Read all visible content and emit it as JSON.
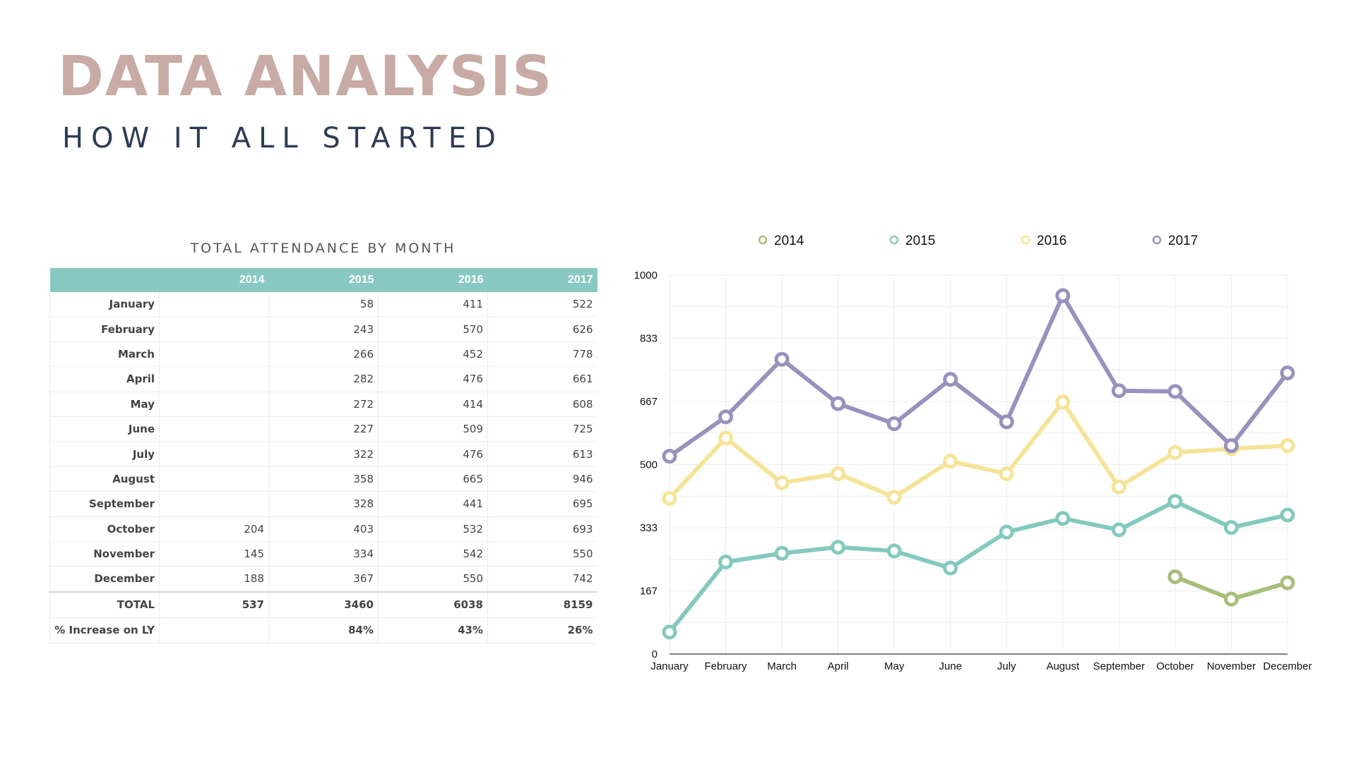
{
  "header": {
    "title": "DATA ANALYSIS",
    "subtitle": "HOW IT ALL STARTED"
  },
  "table": {
    "caption": "TOTAL ATTENDANCE BY MONTH",
    "columns": [
      "",
      "2014",
      "2015",
      "2016",
      "2017"
    ],
    "rows": [
      {
        "label": "January",
        "values": [
          "",
          "58",
          "411",
          "522"
        ]
      },
      {
        "label": "February",
        "values": [
          "",
          "243",
          "570",
          "626"
        ]
      },
      {
        "label": "March",
        "values": [
          "",
          "266",
          "452",
          "778"
        ]
      },
      {
        "label": "April",
        "values": [
          "",
          "282",
          "476",
          "661"
        ]
      },
      {
        "label": "May",
        "values": [
          "",
          "272",
          "414",
          "608"
        ]
      },
      {
        "label": "June",
        "values": [
          "",
          "227",
          "509",
          "725"
        ]
      },
      {
        "label": "July",
        "values": [
          "",
          "322",
          "476",
          "613"
        ]
      },
      {
        "label": "August",
        "values": [
          "",
          "358",
          "665",
          "946"
        ]
      },
      {
        "label": "September",
        "values": [
          "",
          "328",
          "441",
          "695"
        ]
      },
      {
        "label": "October",
        "values": [
          "204",
          "403",
          "532",
          "693"
        ]
      },
      {
        "label": "November",
        "values": [
          "145",
          "334",
          "542",
          "550"
        ]
      },
      {
        "label": "December",
        "values": [
          "188",
          "367",
          "550",
          "742"
        ]
      }
    ],
    "total": {
      "label": "TOTAL",
      "values": [
        "537",
        "3460",
        "6038",
        "8159"
      ]
    },
    "increase": {
      "label": "% Increase on LY",
      "values": [
        "",
        "84%",
        "43%",
        "26%"
      ]
    }
  },
  "chart_data": {
    "type": "line",
    "categories": [
      "January",
      "February",
      "March",
      "April",
      "May",
      "June",
      "July",
      "August",
      "September",
      "October",
      "November",
      "December"
    ],
    "series": [
      {
        "name": "2014",
        "color": "#a9be7b",
        "values": [
          null,
          null,
          null,
          null,
          null,
          null,
          null,
          null,
          null,
          204,
          145,
          188
        ]
      },
      {
        "name": "2015",
        "color": "#84c9bf",
        "values": [
          58,
          243,
          266,
          282,
          272,
          227,
          322,
          358,
          328,
          403,
          334,
          367
        ]
      },
      {
        "name": "2016",
        "color": "#f5e497",
        "values": [
          411,
          570,
          452,
          476,
          414,
          509,
          476,
          665,
          441,
          532,
          542,
          550
        ]
      },
      {
        "name": "2017",
        "color": "#9a91bd",
        "values": [
          522,
          626,
          778,
          661,
          608,
          725,
          613,
          946,
          695,
          693,
          550,
          742
        ]
      }
    ],
    "yticks": [
      "0",
      "167",
      "333",
      "500",
      "667",
      "833",
      "1000"
    ],
    "ylim": [
      0,
      1000
    ],
    "grid": true,
    "legend": "top"
  }
}
